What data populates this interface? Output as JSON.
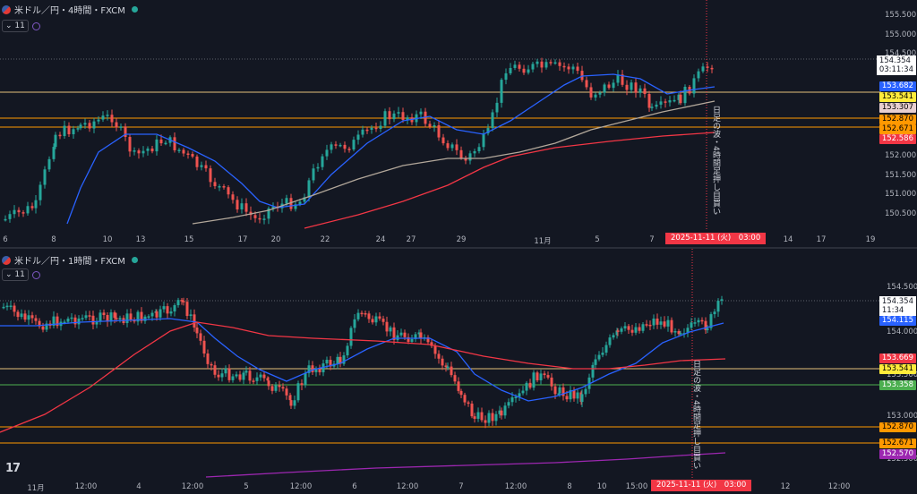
{
  "colors": {
    "background": "#131722",
    "up": "#26a69a",
    "down": "#ef5350",
    "ma_blue": "#2962ff",
    "ma_red": "#f23645",
    "ma_grey": "#b2a79a",
    "ma_purple": "#9c27b0",
    "level_yellow": "#e5c07b",
    "level_orange": "#ff9800"
  },
  "pane1": {
    "symbol": "米ドル／円・4時間・FXCM",
    "indicator_count": "11",
    "price_axis": [
      "155.500",
      "155.000",
      "154.500",
      "152.000",
      "151.500",
      "151.000",
      "150.500"
    ],
    "price_box": {
      "price": "154.354",
      "countdown": "03:11:34"
    },
    "tags": [
      {
        "text": "153.682",
        "color": "#2962ff",
        "textcolor": "#ffffff"
      },
      {
        "text": "153.541",
        "color": "#ffeb3b",
        "textcolor": "#000000"
      },
      {
        "text": "153.307",
        "color": "#e8cfd0",
        "textcolor": "#000000"
      },
      {
        "text": "152.870",
        "color": "#ff9800",
        "textcolor": "#000000"
      },
      {
        "text": "152.671",
        "color": "#ff9800",
        "textcolor": "#000000"
      },
      {
        "text": "152.586",
        "color": "#f23645",
        "textcolor": "#ffffff"
      }
    ],
    "time_axis": [
      "6",
      "8",
      "10",
      "13",
      "15",
      "17",
      "20",
      "22",
      "24",
      "27",
      "29",
      "11月",
      "5",
      "7",
      "14",
      "17",
      "19"
    ],
    "crosshair_time": "2025-11-11 (火)　03:00",
    "note": "日足の波・4時間足押し目買い"
  },
  "pane2": {
    "symbol": "米ドル／円・1時間・FXCM",
    "indicator_count": "11",
    "price_axis": [
      "154.500",
      "154.000",
      "153.500",
      "153.000",
      "152.500"
    ],
    "price_box": {
      "price": "154.354",
      "countdown": "11:34"
    },
    "tags": [
      {
        "text": "154.115",
        "color": "#2962ff",
        "textcolor": "#ffffff"
      },
      {
        "text": "153.669",
        "color": "#f23645",
        "textcolor": "#ffffff"
      },
      {
        "text": "153.541",
        "color": "#ffeb3b",
        "textcolor": "#000000"
      },
      {
        "text": "153.358",
        "color": "#4caf50",
        "textcolor": "#ffffff"
      },
      {
        "text": "152.870",
        "color": "#ff9800",
        "textcolor": "#000000"
      },
      {
        "text": "152.671",
        "color": "#ff9800",
        "textcolor": "#000000"
      },
      {
        "text": "152.570",
        "color": "#9c27b0",
        "textcolor": "#ffffff"
      }
    ],
    "time_axis": [
      "11月",
      "12:00",
      "4",
      "12:00",
      "5",
      "12:00",
      "6",
      "12:00",
      "7",
      "12:00",
      "8",
      "10",
      "15:00",
      "00",
      "12",
      "12:00"
    ],
    "crosshair_time": "2025-11-11 (火)　03:00",
    "note": "日足の波・4時間足押し目買い",
    "logo": "17"
  }
}
